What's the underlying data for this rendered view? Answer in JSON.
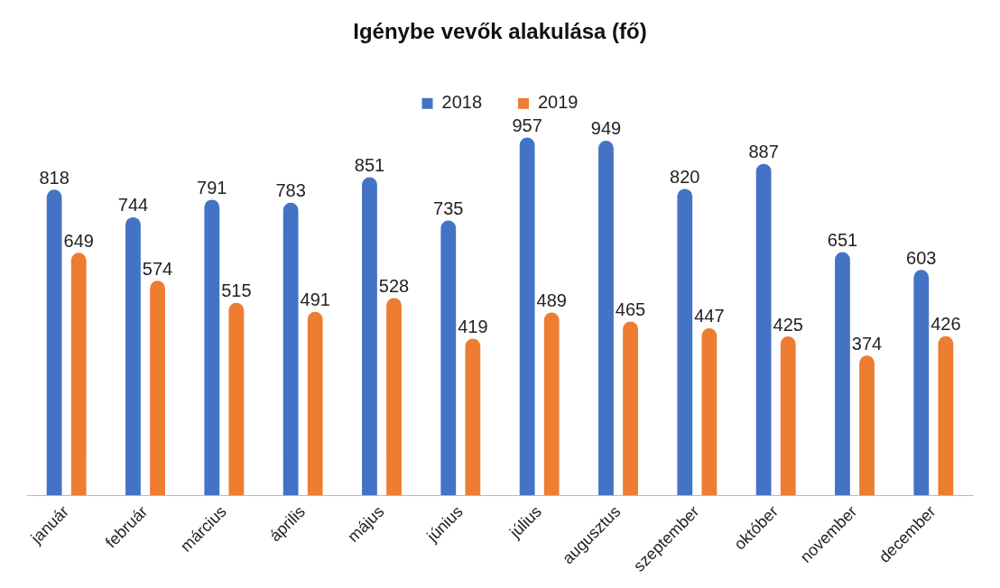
{
  "chart_data": {
    "type": "bar",
    "title": "Igénybe vevők alakulása (fő)",
    "categories": [
      "január",
      "február",
      "március",
      "április",
      "május",
      "június",
      "július",
      "augusztus",
      "szeptember",
      "október",
      "november",
      "december"
    ],
    "series": [
      {
        "name": "2018",
        "color": "#4472c4",
        "values": [
          818,
          744,
          791,
          783,
          851,
          735,
          957,
          949,
          820,
          887,
          651,
          603
        ]
      },
      {
        "name": "2019",
        "color": "#ed7d31",
        "values": [
          649,
          574,
          515,
          491,
          528,
          419,
          489,
          465,
          447,
          425,
          374,
          426
        ]
      }
    ],
    "data_labels": true,
    "legend": "top",
    "grid": false,
    "tick_labels": "x"
  }
}
